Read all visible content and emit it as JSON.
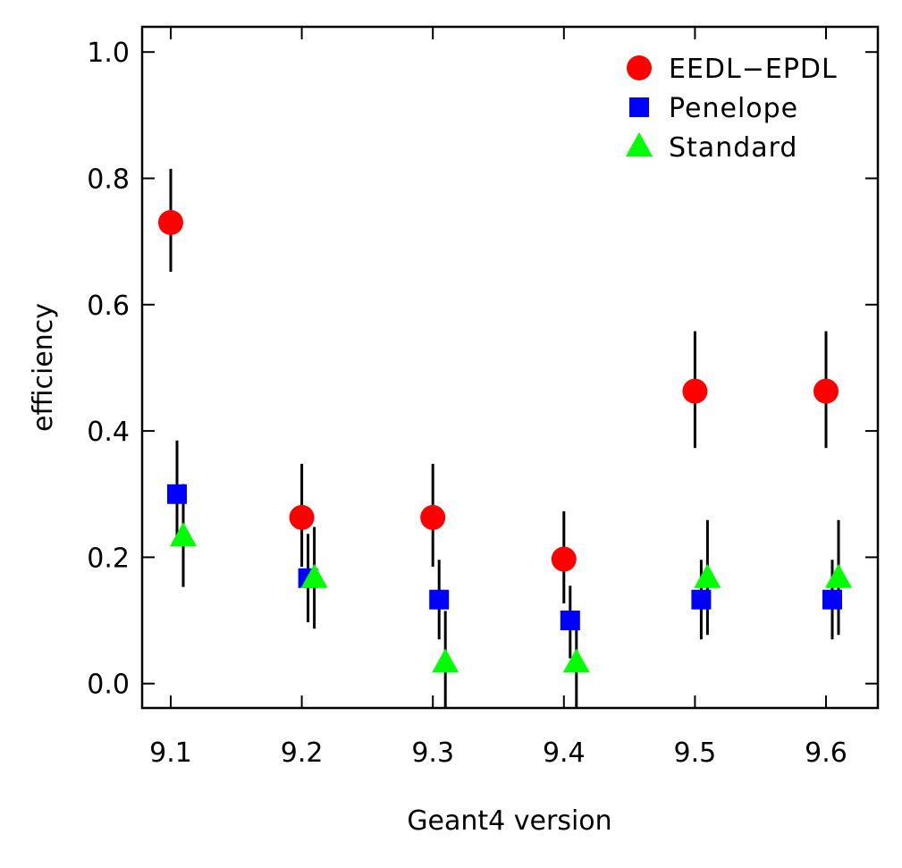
{
  "chart_data": {
    "type": "scatter",
    "title": "",
    "xlabel": "Geant4 version",
    "ylabel": "efficiency",
    "categories": [
      "9.1",
      "9.2",
      "9.3",
      "9.4",
      "9.5",
      "9.6"
    ],
    "yticks": [
      "0.0",
      "0.2",
      "0.4",
      "0.6",
      "0.8",
      "1.0"
    ],
    "ylim": [
      -0.04,
      1.04
    ],
    "grid": false,
    "legend_position": "top-right",
    "series": [
      {
        "name": "EEDL−EPDL",
        "marker": "circle",
        "color": "#ff0000",
        "values": [
          0.73,
          0.263,
          0.263,
          0.197,
          0.463,
          0.463
        ],
        "err_low": [
          0.652,
          0.185,
          0.185,
          0.127,
          0.373,
          0.373
        ],
        "err_high": [
          0.815,
          0.348,
          0.348,
          0.273,
          0.558,
          0.558
        ]
      },
      {
        "name": "Penelope",
        "marker": "square",
        "color": "#0000ff",
        "values": [
          0.3,
          0.167,
          0.133,
          0.1,
          0.133,
          0.133
        ],
        "err_low": [
          0.219,
          0.097,
          0.07,
          0.04,
          0.07,
          0.07
        ],
        "err_high": [
          0.385,
          0.237,
          0.196,
          0.155,
          0.196,
          0.196
        ]
      },
      {
        "name": "Standard",
        "marker": "triangle",
        "color": "#00ff00",
        "values": [
          0.233,
          0.167,
          0.033,
          0.033,
          0.167,
          0.167
        ],
        "err_low": [
          0.153,
          0.087,
          -0.04,
          -0.04,
          0.077,
          0.077
        ],
        "err_high": [
          0.316,
          0.248,
          0.115,
          0.115,
          0.259,
          0.259
        ]
      }
    ]
  }
}
